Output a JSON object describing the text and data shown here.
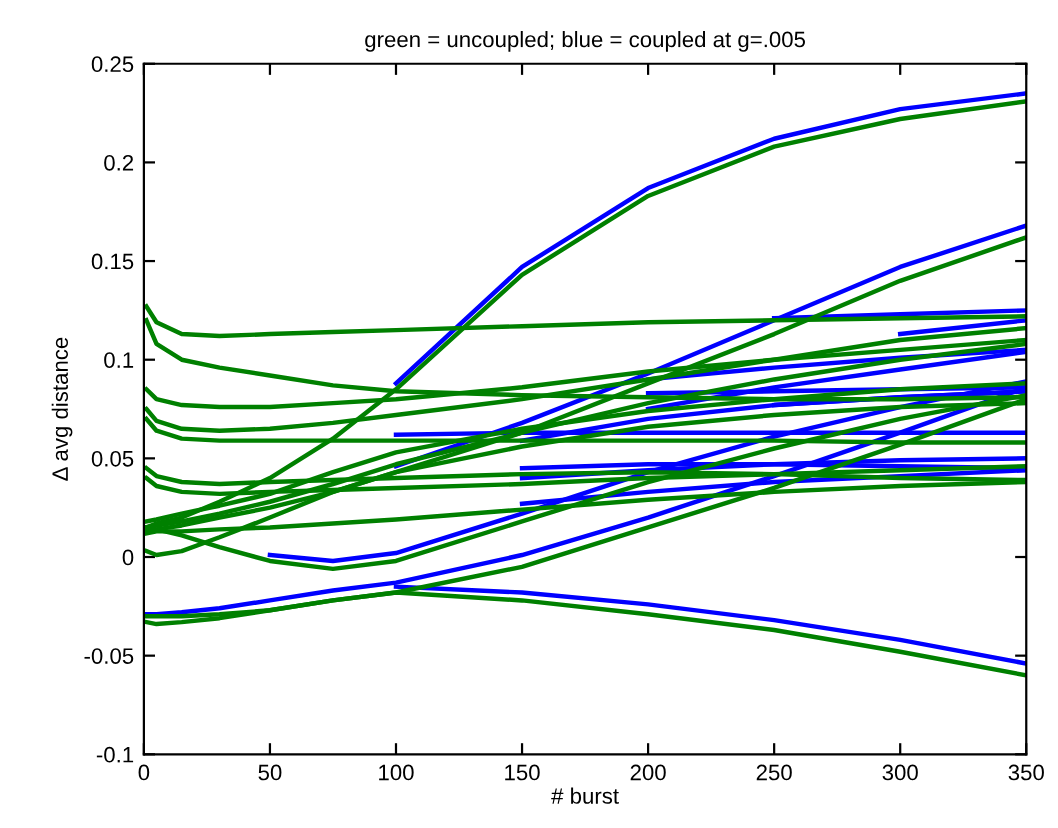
{
  "chart_data": {
    "type": "line",
    "title": "green = uncoupled; blue = coupled at g=.005",
    "xlabel": "# burst",
    "ylabel": "Δ avg distance",
    "x": [
      1,
      5,
      15,
      30,
      50,
      75,
      100,
      150,
      200,
      250,
      300,
      350
    ],
    "xlim": [
      0,
      350
    ],
    "xticks": [
      0,
      50,
      100,
      150,
      200,
      250,
      300,
      350
    ],
    "ylim": [
      -0.1,
      0.25
    ],
    "yticks": [
      {
        "value": -0.1,
        "label": "-0.1"
      },
      {
        "value": -0.05,
        "label": "-0.05"
      },
      0,
      0.05,
      0.1,
      0.15,
      0.2,
      0.25
    ],
    "grid": false,
    "line_style": "solid",
    "series": [
      {
        "color": "#0000ff",
        "values": [
          null,
          null,
          null,
          null,
          null,
          null,
          0.088,
          0.147,
          0.187,
          0.212,
          0.227,
          0.235
        ]
      },
      {
        "color": "#0000ff",
        "values": [
          null,
          null,
          null,
          null,
          null,
          null,
          0.046,
          0.068,
          0.093,
          0.12,
          0.147,
          0.168
        ]
      },
      {
        "color": "#0000ff",
        "values": [
          null,
          null,
          null,
          null,
          null,
          null,
          null,
          null,
          null,
          0.121,
          0.123,
          0.125
        ]
      },
      {
        "color": "#0000ff",
        "values": [
          null,
          null,
          null,
          null,
          null,
          null,
          null,
          null,
          0.083,
          0.084,
          0.085,
          0.086
        ]
      },
      {
        "color": "#0000ff",
        "values": [
          null,
          null,
          null,
          null,
          null,
          null,
          null,
          null,
          0.09,
          0.096,
          0.101,
          0.105
        ]
      },
      {
        "color": "#0000ff",
        "values": [
          null,
          null,
          null,
          null,
          null,
          null,
          null,
          null,
          null,
          null,
          0.113,
          0.12
        ]
      },
      {
        "color": "#0000ff",
        "values": [
          null,
          null,
          null,
          null,
          null,
          null,
          0.062,
          0.063,
          0.063,
          0.063,
          0.063,
          0.063
        ]
      },
      {
        "color": "#0000ff",
        "values": [
          null,
          null,
          null,
          null,
          null,
          null,
          null,
          0.045,
          0.047,
          0.047,
          0.046,
          0.045
        ]
      },
      {
        "color": "#0000ff",
        "values": [
          null,
          null,
          null,
          null,
          null,
          null,
          null,
          0.04,
          0.044,
          0.047,
          0.049,
          0.05
        ]
      },
      {
        "color": "#0000ff",
        "values": [
          null,
          null,
          null,
          null,
          null,
          null,
          null,
          null,
          0.075,
          0.086,
          0.095,
          0.104
        ]
      },
      {
        "color": "#0000ff",
        "values": [
          null,
          null,
          null,
          null,
          null,
          null,
          null,
          null,
          null,
          0.077,
          0.081,
          0.084
        ]
      },
      {
        "color": "#0000ff",
        "values": [
          null,
          null,
          null,
          null,
          0.001,
          -0.002,
          0.002,
          0.022,
          0.043,
          0.061,
          0.076,
          0.089
        ]
      },
      {
        "color": "#0000ff",
        "values": [
          null,
          null,
          null,
          null,
          null,
          null,
          null,
          0.059,
          0.07,
          0.077,
          0.081,
          0.084
        ]
      },
      {
        "color": "#0000ff",
        "values": [
          null,
          null,
          null,
          null,
          null,
          null,
          null,
          0.027,
          0.033,
          0.038,
          0.041,
          0.044
        ]
      },
      {
        "color": "#0000ff",
        "values": [
          null,
          null,
          null,
          null,
          null,
          null,
          -0.015,
          -0.018,
          -0.024,
          -0.032,
          -0.042,
          -0.054
        ]
      },
      {
        "color": "#0000ff",
        "values": [
          -0.029,
          -0.029,
          -0.028,
          -0.026,
          -0.022,
          -0.017,
          -0.013,
          0.001,
          0.02,
          0.041,
          0.063,
          0.086
        ]
      },
      {
        "color": "#008000",
        "values": [
          0.015,
          0.017,
          0.02,
          0.028,
          0.04,
          0.06,
          0.085,
          0.143,
          0.183,
          0.208,
          0.222,
          0.231
        ]
      },
      {
        "color": "#008000",
        "values": [
          0.013,
          0.014,
          0.016,
          0.02,
          0.025,
          0.033,
          0.043,
          0.063,
          0.088,
          0.113,
          0.14,
          0.162
        ]
      },
      {
        "color": "#008000",
        "values": [
          0.127,
          0.119,
          0.113,
          0.112,
          0.113,
          0.114,
          0.115,
          0.117,
          0.119,
          0.12,
          0.121,
          0.122
        ]
      },
      {
        "color": "#008000",
        "values": [
          0.12,
          0.108,
          0.1,
          0.096,
          0.092,
          0.087,
          0.084,
          0.082,
          0.081,
          0.08,
          0.08,
          0.081
        ]
      },
      {
        "color": "#008000",
        "values": [
          0.085,
          0.08,
          0.077,
          0.076,
          0.076,
          0.078,
          0.08,
          0.086,
          0.094,
          0.1,
          0.105,
          0.11
        ]
      },
      {
        "color": "#008000",
        "values": [
          0.075,
          0.069,
          0.065,
          0.064,
          0.065,
          0.068,
          0.072,
          0.08,
          0.09,
          0.1,
          0.11,
          0.116
        ]
      },
      {
        "color": "#008000",
        "values": [
          0.07,
          0.064,
          0.06,
          0.059,
          0.059,
          0.059,
          0.059,
          0.059,
          0.059,
          0.059,
          0.058,
          0.058
        ]
      },
      {
        "color": "#008000",
        "values": [
          0.045,
          0.041,
          0.038,
          0.037,
          0.038,
          0.039,
          0.04,
          0.042,
          0.043,
          0.042,
          0.04,
          0.039
        ]
      },
      {
        "color": "#008000",
        "values": [
          0.04,
          0.036,
          0.033,
          0.032,
          0.033,
          0.034,
          0.035,
          0.037,
          0.04,
          0.042,
          0.044,
          0.046
        ]
      },
      {
        "color": "#008000",
        "values": [
          0.015,
          0.016,
          0.018,
          0.022,
          0.028,
          0.037,
          0.047,
          0.063,
          0.078,
          0.09,
          0.1,
          0.108
        ]
      },
      {
        "color": "#008000",
        "values": [
          0.018,
          0.019,
          0.022,
          0.026,
          0.032,
          0.043,
          0.053,
          0.065,
          0.074,
          0.08,
          0.085,
          0.088
        ]
      },
      {
        "color": "#008000",
        "values": [
          0.015,
          0.014,
          0.011,
          0.005,
          -0.002,
          -0.006,
          -0.002,
          0.018,
          0.038,
          0.055,
          0.07,
          0.082
        ]
      },
      {
        "color": "#008000",
        "values": [
          0.003,
          0.001,
          0.003,
          0.01,
          0.02,
          0.033,
          0.043,
          0.056,
          0.066,
          0.072,
          0.076,
          0.078
        ]
      },
      {
        "color": "#008000",
        "values": [
          0.012,
          0.013,
          0.013,
          0.014,
          0.015,
          0.017,
          0.019,
          0.024,
          0.029,
          0.033,
          0.036,
          0.038
        ]
      },
      {
        "color": "#008000",
        "values": [
          -0.03,
          -0.03,
          -0.03,
          -0.029,
          -0.027,
          -0.022,
          -0.018,
          -0.022,
          -0.029,
          -0.037,
          -0.048,
          -0.06
        ]
      },
      {
        "color": "#008000",
        "values": [
          -0.033,
          -0.034,
          -0.033,
          -0.031,
          -0.027,
          -0.022,
          -0.018,
          -0.005,
          0.015,
          0.035,
          0.057,
          0.08
        ]
      }
    ]
  }
}
